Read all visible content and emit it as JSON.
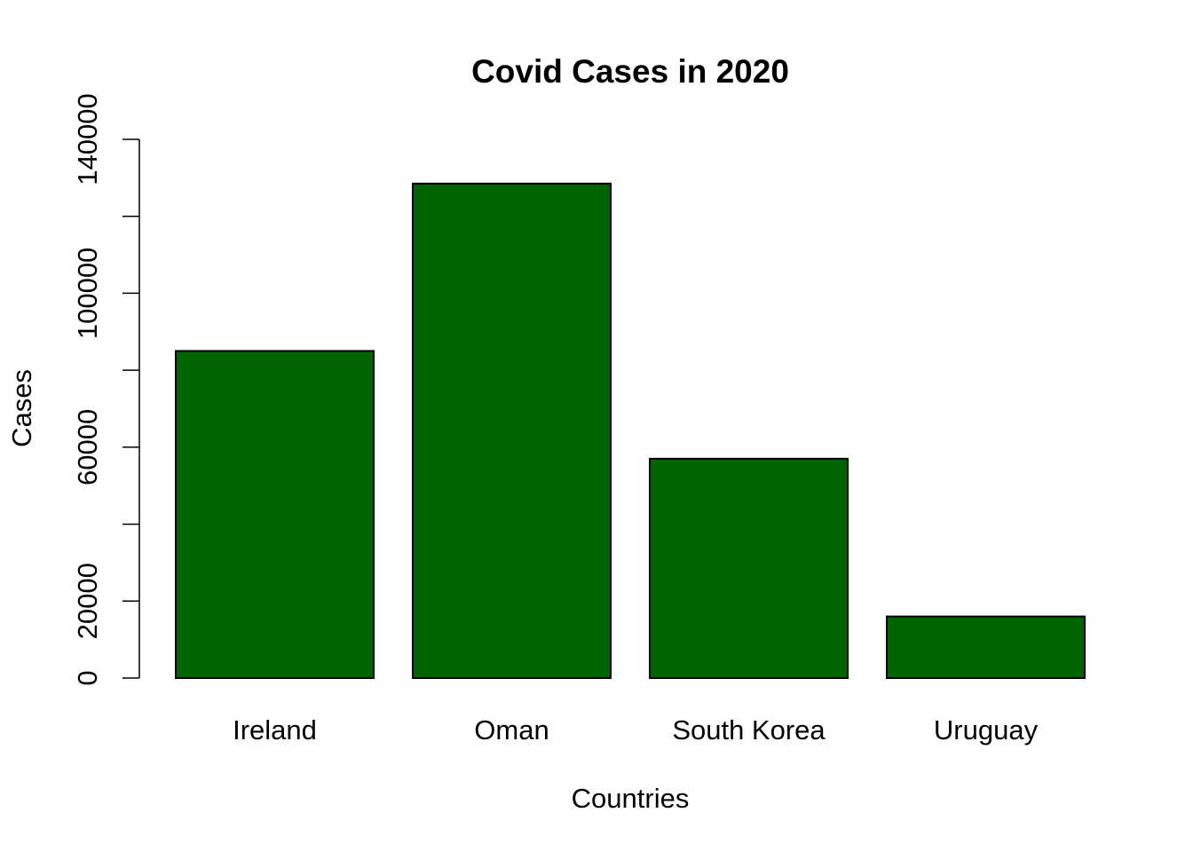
{
  "chart_data": {
    "type": "bar",
    "title": "Covid Cases in 2020",
    "xlabel": "Countries",
    "ylabel": "Cases",
    "categories": [
      "Ireland",
      "Oman",
      "South Korea",
      "Uruguay"
    ],
    "values": [
      85000,
      128500,
      57000,
      16000
    ],
    "ylim": [
      0,
      140000
    ],
    "y_ticks": [
      0,
      20000,
      40000,
      60000,
      80000,
      100000,
      120000,
      140000
    ],
    "y_tick_labels": [
      "0",
      "20000",
      "",
      "60000",
      "",
      "100000",
      "",
      "140000"
    ],
    "bar_color": "#006400",
    "grid": false,
    "legend": "none"
  }
}
